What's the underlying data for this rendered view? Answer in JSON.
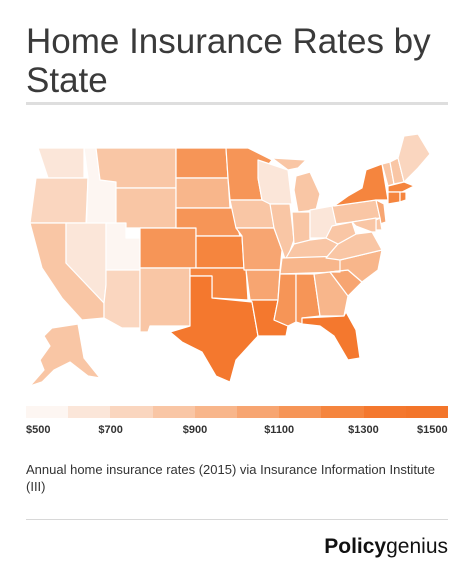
{
  "title": "Home Insurance Rates by State",
  "legend": {
    "colors": [
      "#fdf6f2",
      "#fbe6d9",
      "#fad6bf",
      "#f9c6a5",
      "#f8b68b",
      "#f7a571",
      "#f69557",
      "#f5853e",
      "#f4782e",
      "#f3752a"
    ],
    "ticks": [
      "$500",
      "$700",
      "$900",
      "$1100",
      "$1300",
      "$1500"
    ]
  },
  "caption": "Annual home insurance rates (2015) via Insurance Information Institute (III)",
  "brand": {
    "bold": "Policy",
    "regular": "genius"
  },
  "states": [
    {
      "name": "WA",
      "color": "#fbe6d9"
    },
    {
      "name": "OR",
      "color": "#fad6bf"
    },
    {
      "name": "CA",
      "color": "#f9c6a5"
    },
    {
      "name": "ID",
      "color": "#fdf6f2"
    },
    {
      "name": "NV",
      "color": "#fbe6d9"
    },
    {
      "name": "UT",
      "color": "#fdf6f2"
    },
    {
      "name": "AZ",
      "color": "#fad6bf"
    },
    {
      "name": "MT",
      "color": "#f9c6a5"
    },
    {
      "name": "WY",
      "color": "#f9c6a5"
    },
    {
      "name": "CO",
      "color": "#f69557"
    },
    {
      "name": "NM",
      "color": "#f9c6a5"
    },
    {
      "name": "ND",
      "color": "#f69557"
    },
    {
      "name": "SD",
      "color": "#f8b68b"
    },
    {
      "name": "NE",
      "color": "#f69557"
    },
    {
      "name": "KS",
      "color": "#f5853e"
    },
    {
      "name": "OK",
      "color": "#f5853e"
    },
    {
      "name": "TX",
      "color": "#f4782e"
    },
    {
      "name": "MN",
      "color": "#f69557"
    },
    {
      "name": "IA",
      "color": "#f9c6a5"
    },
    {
      "name": "MO",
      "color": "#f7a571"
    },
    {
      "name": "AR",
      "color": "#f7a571"
    },
    {
      "name": "LA",
      "color": "#f4782e"
    },
    {
      "name": "WI",
      "color": "#fbe6d9"
    },
    {
      "name": "IL",
      "color": "#f9c6a5"
    },
    {
      "name": "MI",
      "color": "#f9c6a5"
    },
    {
      "name": "IN",
      "color": "#f9c6a5"
    },
    {
      "name": "OH",
      "color": "#fbe6d9"
    },
    {
      "name": "KY",
      "color": "#f9c6a5"
    },
    {
      "name": "TN",
      "color": "#f8b68b"
    },
    {
      "name": "MS",
      "color": "#f69557"
    },
    {
      "name": "AL",
      "color": "#f69557"
    },
    {
      "name": "GA",
      "color": "#f8b68b"
    },
    {
      "name": "FL",
      "color": "#f4782e"
    },
    {
      "name": "SC",
      "color": "#f7a571"
    },
    {
      "name": "NC",
      "color": "#f8b68b"
    },
    {
      "name": "VA",
      "color": "#f9c6a5"
    },
    {
      "name": "WV",
      "color": "#f9c6a5"
    },
    {
      "name": "PA",
      "color": "#f9c6a5"
    },
    {
      "name": "NY",
      "color": "#f5853e"
    },
    {
      "name": "VT",
      "color": "#f9c6a5"
    },
    {
      "name": "NH",
      "color": "#f9c6a5"
    },
    {
      "name": "ME",
      "color": "#fad6bf"
    },
    {
      "name": "MA",
      "color": "#f5853e"
    },
    {
      "name": "CT",
      "color": "#f5853e"
    },
    {
      "name": "RI",
      "color": "#f5853e"
    },
    {
      "name": "NJ",
      "color": "#f7a571"
    },
    {
      "name": "DE",
      "color": "#f9c6a5"
    },
    {
      "name": "MD",
      "color": "#f9c6a5"
    },
    {
      "name": "AK",
      "color": "#f9c6a5"
    }
  ]
}
